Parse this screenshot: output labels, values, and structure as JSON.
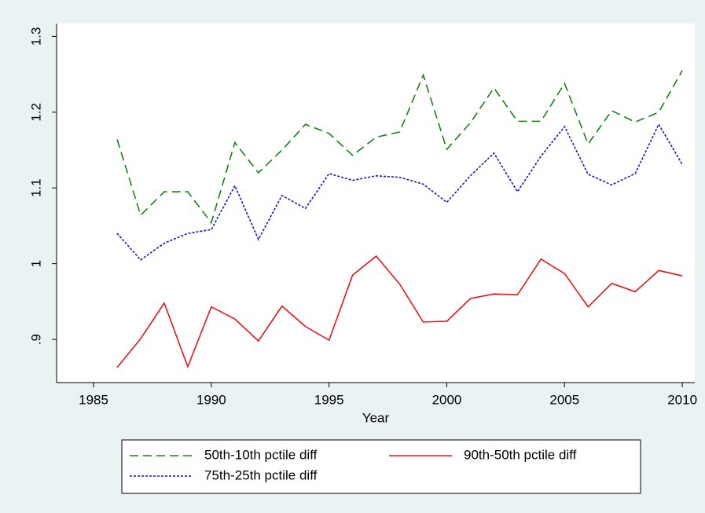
{
  "chart_data": {
    "type": "line",
    "x_label": "Year",
    "x": [
      1986,
      1987,
      1988,
      1989,
      1990,
      1991,
      1992,
      1993,
      1994,
      1995,
      1996,
      1997,
      1998,
      1999,
      2000,
      2001,
      2002,
      2003,
      2004,
      2005,
      2006,
      2007,
      2008,
      2009,
      2010
    ],
    "series": [
      {
        "name": "50th-10th pctile diff",
        "color": "#1a801a",
        "style": "dashed",
        "values": [
          1.164,
          1.064,
          1.095,
          1.095,
          1.054,
          1.16,
          1.12,
          1.15,
          1.184,
          1.172,
          1.143,
          1.167,
          1.174,
          1.249,
          1.151,
          1.186,
          1.232,
          1.188,
          1.188,
          1.238,
          1.158,
          1.202,
          1.187,
          1.2,
          1.255
        ]
      },
      {
        "name": "90th-50th pctile diff",
        "color": "#e8141c",
        "style": "solid",
        "values": [
          0.863,
          0.901,
          0.948,
          0.864,
          0.943,
          0.927,
          0.898,
          0.944,
          0.917,
          0.899,
          0.985,
          1.01,
          0.973,
          0.923,
          0.924,
          0.954,
          0.96,
          0.959,
          1.006,
          0.987,
          0.943,
          0.974,
          0.963,
          0.991,
          0.984
        ]
      },
      {
        "name": "75th-25th pctile diff",
        "color": "#1414d0",
        "style": "dotted",
        "values": [
          1.04,
          1.005,
          1.027,
          1.04,
          1.045,
          1.103,
          1.032,
          1.09,
          1.073,
          1.119,
          1.11,
          1.116,
          1.114,
          1.105,
          1.081,
          1.116,
          1.146,
          1.095,
          1.142,
          1.181,
          1.118,
          1.104,
          1.119,
          1.184,
          1.131
        ]
      }
    ],
    "xlim": [
      1983.43,
      2010.53
    ],
    "xticks": [
      1985,
      1990,
      1995,
      2000,
      2005,
      2010
    ],
    "ylim": [
      0.843,
      1.317
    ],
    "yticks": [
      {
        "value": 0.9,
        "label": ".9"
      },
      1,
      1.1,
      1.2,
      1.3
    ],
    "grid": false,
    "legend": "bottom",
    "legend_columns": 2
  }
}
